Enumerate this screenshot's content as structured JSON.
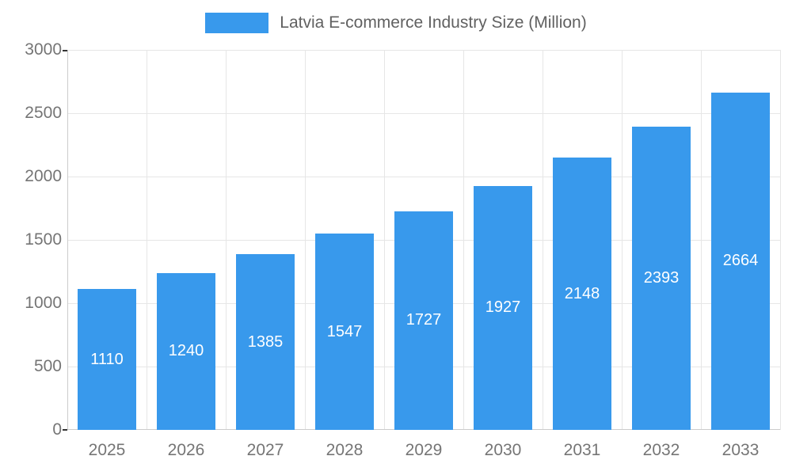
{
  "chart_data": {
    "type": "bar",
    "title": "Latvia E-commerce Industry Size (Million)",
    "categories": [
      "2025",
      "2026",
      "2027",
      "2028",
      "2029",
      "2030",
      "2031",
      "2032",
      "2033"
    ],
    "values": [
      1110,
      1240,
      1385,
      1547,
      1727,
      1927,
      2148,
      2393,
      2664
    ],
    "xlabel": "",
    "ylabel": "",
    "ylim": [
      0,
      3000
    ],
    "yticks": [
      0,
      500,
      1000,
      1500,
      2000,
      2500,
      3000
    ],
    "grid": true,
    "legend_position": "top",
    "colors": {
      "bar": "#3899ec",
      "value_label": "#ffffff",
      "axis_tick_label": "#757575",
      "title": "#616161",
      "gridline": "#e6e6e6",
      "axis_line": "#cccccc"
    }
  }
}
